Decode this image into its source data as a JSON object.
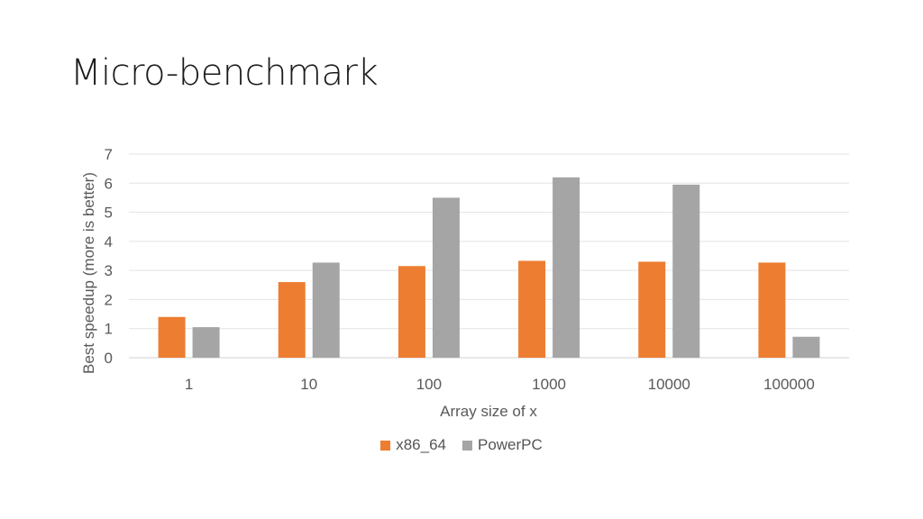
{
  "slide": {
    "title": "Micro-benchmark"
  },
  "chart_data": {
    "type": "bar",
    "title": "",
    "xlabel": "Array size of x",
    "ylabel": "Best speedup (more is better)",
    "categories": [
      "1",
      "10",
      "100",
      "1000",
      "10000",
      "100000"
    ],
    "series": [
      {
        "name": "x86_64",
        "color": "#ED7D31",
        "values": [
          1.4,
          2.6,
          3.15,
          3.33,
          3.3,
          3.27
        ]
      },
      {
        "name": "PowerPC",
        "color": "#A5A5A5",
        "values": [
          1.05,
          3.27,
          5.5,
          6.2,
          5.95,
          0.72
        ]
      }
    ],
    "ylim": [
      0,
      7
    ],
    "yticks": [
      "0",
      "1",
      "2",
      "3",
      "4",
      "5",
      "6",
      "7"
    ],
    "grid": true,
    "legend_position": "bottom"
  }
}
